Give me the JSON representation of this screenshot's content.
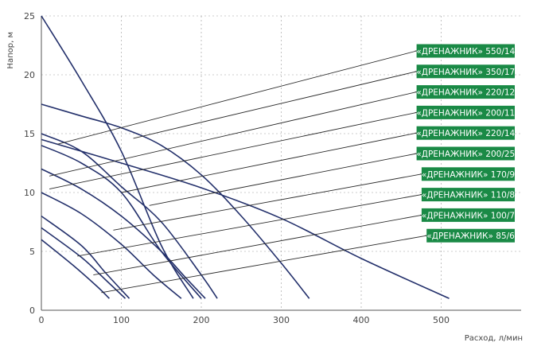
{
  "chart_data": {
    "type": "line",
    "xlabel": "Расход, л/мин",
    "ylabel": "Напор, м",
    "xlim": [
      0,
      600
    ],
    "ylim": [
      0,
      25
    ],
    "xticks": [
      0,
      100,
      200,
      300,
      400,
      500
    ],
    "yticks": [
      0,
      5,
      10,
      15,
      20,
      25
    ],
    "grid": "dotted",
    "label_color": "#1a8a46",
    "curve_color": "#23306b",
    "series": [
      {
        "name": "«ДРЕНАЖНИК» 550/14",
        "x": [
          0,
          100,
          200,
          300,
          400,
          510
        ],
        "y": [
          14.5,
          12.5,
          10.4,
          7.8,
          4.4,
          1.0
        ],
        "anchor": [
          20,
          14.1
        ]
      },
      {
        "name": "«ДРЕНАЖНИК» 350/17",
        "x": [
          0,
          50,
          100,
          150,
          200,
          250,
          300,
          335
        ],
        "y": [
          17.5,
          16.5,
          15.5,
          14.0,
          11.5,
          8.0,
          4.0,
          1.0
        ],
        "anchor": [
          115,
          14.6
        ]
      },
      {
        "name": "«ДРЕНАЖНИК» 220/12",
        "x": [
          0,
          50,
          100,
          150,
          180,
          205
        ],
        "y": [
          12.0,
          10.3,
          8.0,
          5.0,
          2.8,
          1.0
        ],
        "anchor": [
          10,
          11.4
        ]
      },
      {
        "name": "«ДРЕНАЖНИК» 200/11",
        "x": [
          0,
          50,
          100,
          150,
          200
        ],
        "y": [
          14.0,
          12.5,
          10.0,
          5.0,
          1.0
        ],
        "anchor": [
          10,
          10.3
        ]
      },
      {
        "name": "«ДРЕНАЖНИК» 220/14",
        "x": [
          0,
          50,
          100,
          150,
          200,
          220
        ],
        "y": [
          15.0,
          13.5,
          10.5,
          7.5,
          3.0,
          1.0
        ],
        "anchor": [
          100,
          10.0
        ]
      },
      {
        "name": "«ДРЕНАЖНИК» 200/25",
        "x": [
          0,
          50,
          100,
          150,
          190
        ],
        "y": [
          25.0,
          19.5,
          13.5,
          5.5,
          1.0
        ],
        "anchor": [
          135,
          8.9
        ]
      },
      {
        "name": "«ДРЕНАЖНИК» 170/9",
        "x": [
          0,
          50,
          100,
          140,
          175
        ],
        "y": [
          10.0,
          8.2,
          5.6,
          3.0,
          1.0
        ],
        "anchor": [
          90,
          6.8
        ]
      },
      {
        "name": "«ДРЕНАЖНИК» 110/8",
        "x": [
          0,
          50,
          80,
          110
        ],
        "y": [
          8.0,
          5.5,
          3.2,
          1.0
        ],
        "anchor": [
          45,
          4.6
        ]
      },
      {
        "name": "«ДРЕНАЖНИК» 100/7",
        "x": [
          0,
          50,
          80,
          105
        ],
        "y": [
          7.0,
          4.5,
          2.6,
          1.0
        ],
        "anchor": [
          65,
          3.0
        ]
      },
      {
        "name": "«ДРЕНАЖНИК» 85/6",
        "x": [
          0,
          40,
          70,
          85
        ],
        "y": [
          6.0,
          3.8,
          2.0,
          1.0
        ],
        "anchor": [
          75,
          1.5
        ]
      }
    ]
  }
}
